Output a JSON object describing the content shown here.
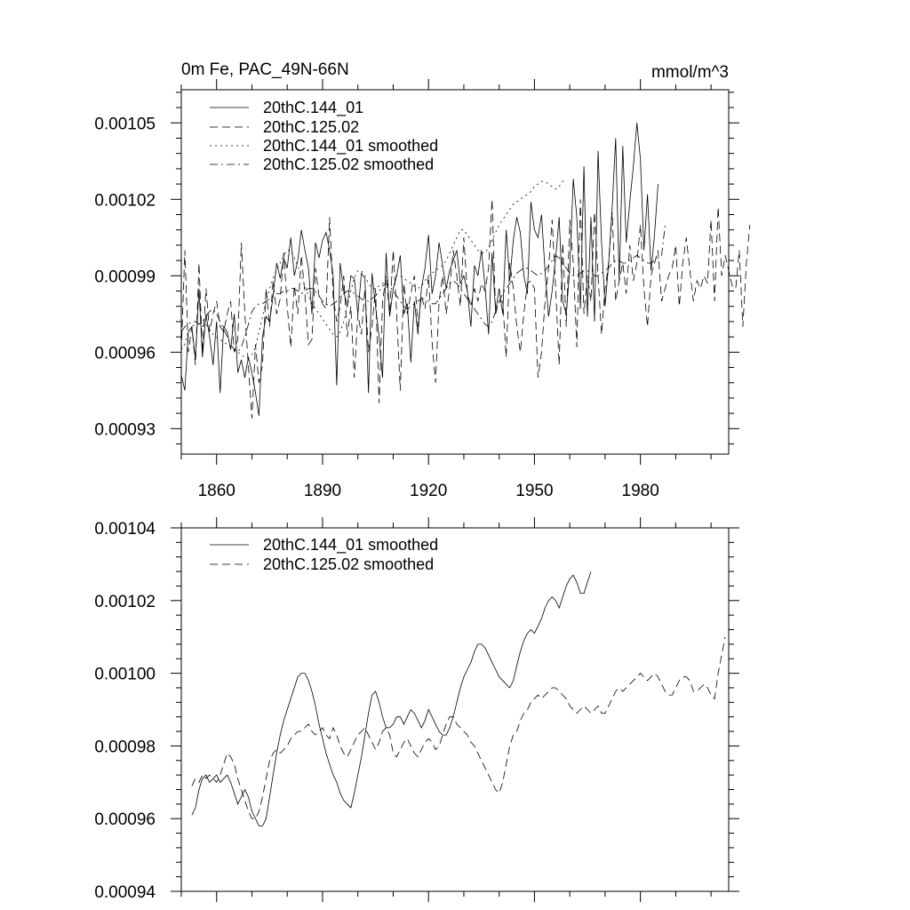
{
  "chart_data": [
    {
      "type": "line",
      "title": "0m Fe, PAC_49N-66N",
      "units_label": "mmol/m^3",
      "xlim": [
        1850,
        2005
      ],
      "ylim": [
        0.00092,
        0.001063
      ],
      "yticks": [
        0.00093,
        0.00096,
        0.00099,
        0.00102,
        0.00105
      ],
      "ytick_labels": [
        "0.00093",
        "0.00096",
        "0.00099",
        "0.00102",
        "0.00105"
      ],
      "xticks": [
        1860,
        1890,
        1920,
        1950,
        1980
      ],
      "xtick_labels": [
        "1860",
        "1890",
        "1920",
        "1950",
        "1980"
      ],
      "legend_position": "top-left",
      "series": [
        {
          "name": "20thC.144_01",
          "style": "solid",
          "x_start": 1850,
          "values": [
            0.000951,
            0.000945,
            0.000968,
            0.00097,
            0.000957,
            0.000985,
            0.000958,
            0.000975,
            0.000966,
            0.000955,
            0.000972,
            0.000944,
            0.00097,
            0.000968,
            0.000961,
            0.000975,
            0.000952,
            0.000957,
            0.00095,
            0.000958,
            0.000952,
            0.000944,
            0.000935,
            0.000966,
            0.000974,
            0.000972,
            0.000982,
            0.000995,
            0.000989,
            0.000997,
            0.000993,
            0.001005,
            0.00099,
            0.000996,
            0.001008,
            0.001,
            0.000993,
            0.000975,
            0.001003,
            0.000997,
            0.001004,
            0.001007,
            0.001,
            0.00099,
            0.000947,
            0.000995,
            0.000984,
            0.000978,
            0.00099,
            0.000989,
            0.000975,
            0.000991,
            0.000989,
            0.000944,
            0.000991,
            0.000978,
            0.000966,
            0.00095,
            0.000999,
            0.000974,
            0.000985,
            0.00099,
            0.000998,
            0.000975,
            0.000979,
            0.000956,
            0.00098,
            0.000967,
            0.000985,
            0.000993,
            0.001006,
            0.000983,
            0.00099,
            0.001003,
            0.000994,
            0.000985,
            0.000992,
            0.000996,
            0.001,
            0.000987,
            0.00099,
            0.000984,
            0.00097,
            0.000994,
            0.00099,
            0.001,
            0.000986,
            0.000967,
            0.000999,
            0.000976,
            0.000985,
            0.000975,
            0.001008,
            0.000988,
            0.001004,
            0.001013,
            0.001007,
            0.00099,
            0.000983,
            0.001019,
            0.001008,
            0.001005,
            0.001014,
            0.000992,
            0.000974,
            0.000984,
            0.000997,
            0.001013,
            0.00098,
            0.000975,
            0.000993,
            0.001028,
            0.001013,
            0.000977,
            0.001033,
            0.000974,
            0.001013,
            0.000972,
            0.001039,
            0.001003,
            0.000978,
            0.000995,
            0.001017,
            0.001044,
            0.000988,
            0.001041,
            0.001003,
            0.001019,
            0.001033,
            0.00105,
            0.001036,
            0.001,
            0.001022,
            0.000992,
            0.001006,
            0.001026
          ]
        },
        {
          "name": "20thC.125.02",
          "style": "dashed",
          "x_start": 1850,
          "values": [
            0.00096,
            0.001,
            0.00096,
            0.00097,
            0.000955,
            0.000995,
            0.00096,
            0.000985,
            0.000968,
            0.000975,
            0.00098,
            0.00097,
            0.000968,
            0.000975,
            0.00098,
            0.00096,
            0.000965,
            0.001003,
            0.000975,
            0.000955,
            0.000934,
            0.000963,
            0.000948,
            0.000955,
            0.000985,
            0.00097,
            0.000988,
            0.000975,
            0.000981,
            0.000999,
            0.000978,
            0.000962,
            0.000986,
            0.000975,
            0.000998,
            0.000983,
            0.000963,
            0.000965,
            0.000993,
            0.000982,
            0.000979,
            0.000977,
            0.001013,
            0.000982,
            0.000972,
            0.000978,
            0.00099,
            0.000966,
            0.000978,
            0.00095,
            0.000975,
            0.000967,
            0.000985,
            0.00096,
            0.00097,
            0.000985,
            0.00094,
            0.00098,
            0.00099,
            0.000975,
            0.001,
            0.000975,
            0.000945,
            0.000987,
            0.000975,
            0.000983,
            0.00099,
            0.00097,
            0.000982,
            0.000977,
            0.00099,
            0.000964,
            0.000948,
            0.00098,
            0.00099,
            0.000975,
            0.000985,
            0.001,
            0.00099,
            0.000978,
            0.001005,
            0.000983,
            0.000978,
            0.000985,
            0.00098,
            0.000987,
            0.000984,
            0.000993,
            0.00102,
            0.000975,
            0.00098,
            0.00098,
            0.000958,
            0.000995,
            0.000985,
            0.00097,
            0.00096,
            0.000975,
            0.000987,
            0.000988,
            0.000985,
            0.00095,
            0.00096,
            0.00098,
            0.000993,
            0.001012,
            0.000985,
            0.000955,
            0.001003,
            0.00097,
            0.001012,
            0.000995,
            0.000962,
            0.00102,
            0.000975,
            0.00099,
            0.00098,
            0.001015,
            0.00099,
            0.000967,
            0.000985,
            0.000995,
            0.001015,
            0.00098,
            0.000988,
            0.000995,
            0.000983,
            0.001002,
            0.000988,
            0.000995,
            0.00101,
            0.000985,
            0.00097,
            0.00099,
            0.000995,
            0.001,
            0.00098,
            0.000985,
            0.00099,
            0.000993,
            0.001002,
            0.000978,
            0.000995,
            0.001005,
            0.000992,
            0.00098,
            0.000988,
            0.000985,
            0.00099,
            0.000987,
            0.001012,
            0.00098,
            0.001017,
            0.00099,
            0.000998,
            0.000992,
            0.000986,
            0.000985,
            0.001,
            0.00097,
            0.000995,
            0.00101
          ]
        },
        {
          "name": "20thC.144_01 smoothed",
          "style": "dotted",
          "x_start": 1850,
          "values": [
            0.000961,
            0.000963,
            0.000968,
            0.00097,
            0.000971,
            0.000971,
            0.00097,
            0.000971,
            0.000969,
            0.000967,
            0.000966,
            0.000965,
            0.000964,
            0.000963,
            0.000962,
            0.000961,
            0.00096,
            0.000959,
            0.000958,
            0.000958,
            0.000959,
            0.000962,
            0.000968,
            0.000974,
            0.00098,
            0.000985,
            0.000989,
            0.000992,
            0.000995,
            0.000998,
            0.001,
            0.001,
            0.000997,
            0.000994,
            0.00099,
            0.000986,
            0.000982,
            0.000979,
            0.000977,
            0.000975,
            0.000973,
            0.000971,
            0.000969,
            0.000967,
            0.000966,
            0.000968,
            0.000972,
            0.000978,
            0.000984,
            0.000989,
            0.000992,
            0.000992,
            0.00099,
            0.000987,
            0.000985,
            0.000985,
            0.000986,
            0.000987,
            0.000988,
            0.000989,
            0.00099,
            0.00099,
            0.00099,
            0.000989,
            0.000988,
            0.000987,
            0.000986,
            0.000985,
            0.000986,
            0.000988,
            0.00099,
            0.000991,
            0.000992,
            0.000993,
            0.000994,
            0.000996,
            0.000999,
            0.001002,
            0.001005,
            0.001008,
            0.001008,
            0.001006,
            0.001004,
            0.001002,
            0.001,
            0.000999,
            0.000999,
            0.001001,
            0.001004,
            0.001007,
            0.00101,
            0.001012,
            0.001014,
            0.001016,
            0.001018,
            0.001019,
            0.00102,
            0.001021,
            0.001022,
            0.001023,
            0.001025,
            0.001026,
            0.001027,
            0.001027,
            0.001026,
            0.001025,
            0.001024,
            0.001025,
            0.001027,
            0.001028
          ]
        },
        {
          "name": "20thC.125.02 smoothed",
          "style": "dashdot",
          "x_start": 1850,
          "values": [
            0.000968,
            0.00097,
            0.000971,
            0.000972,
            0.000972,
            0.000971,
            0.000972,
            0.000974,
            0.000976,
            0.000977,
            0.000975,
            0.000972,
            0.000969,
            0.000966,
            0.000963,
            0.000961,
            0.00096,
            0.000962,
            0.000966,
            0.000971,
            0.000976,
            0.000978,
            0.000979,
            0.000979,
            0.00098,
            0.000981,
            0.000982,
            0.000983,
            0.000983,
            0.000984,
            0.000984,
            0.000985,
            0.000985,
            0.000984,
            0.000983,
            0.000984,
            0.000985,
            0.000985,
            0.000984,
            0.000982,
            0.00098,
            0.000979,
            0.000978,
            0.000979,
            0.00098,
            0.000982,
            0.000983,
            0.000984,
            0.000984,
            0.000983,
            0.000982,
            0.000981,
            0.00098,
            0.00098,
            0.000981,
            0.000982,
            0.000984,
            0.000986,
            0.000987,
            0.000986,
            0.000984,
            0.000982,
            0.00098,
            0.000978,
            0.000977,
            0.000978,
            0.000979,
            0.00098,
            0.000981,
            0.000981,
            0.00098,
            0.000979,
            0.000979,
            0.000981,
            0.000983,
            0.000985,
            0.000987,
            0.000988,
            0.000987,
            0.000985,
            0.000983,
            0.000981,
            0.000979,
            0.000977,
            0.000975,
            0.000973,
            0.000971,
            0.00097,
            0.000972,
            0.000976,
            0.00098,
            0.000983,
            0.000985,
            0.000987,
            0.000989,
            0.000991,
            0.000992,
            0.000993,
            0.000993,
            0.000992,
            0.000991,
            0.00099,
            0.000991,
            0.000992,
            0.000994,
            0.000996,
            0.000998,
            0.000997,
            0.000995,
            0.000993,
            0.000991,
            0.00099,
            0.00099,
            0.000991,
            0.000992,
            0.000992,
            0.000991,
            0.00099,
            0.00099,
            0.000991,
            0.000992,
            0.000993,
            0.000995,
            0.000996,
            0.000996,
            0.000995,
            0.000995,
            0.000996,
            0.000997,
            0.000998,
            0.000997,
            0.000996,
            0.000995,
            0.000995,
            0.000996,
            0.000997,
            0.000998,
            0.00101
          ]
        }
      ]
    },
    {
      "type": "line",
      "xlim": [
        1850,
        2005
      ],
      "ylim": [
        0.00094,
        0.00104
      ],
      "yticks": [
        0.00094,
        0.00096,
        0.00098,
        0.001,
        0.00102,
        0.00104
      ],
      "ytick_labels": [
        "0.00094",
        "0.00096",
        "0.00098",
        "0.00100",
        "0.00102",
        "0.00104"
      ],
      "xticks": [
        1860,
        1890,
        1920,
        1950,
        1980
      ],
      "legend_position": "top-left",
      "series": [
        {
          "name": "20thC.144_01 smoothed",
          "style": "solid",
          "x_start": 1853,
          "values": [
            0.000961,
            0.000963,
            0.000968,
            0.000971,
            0.000972,
            0.00097,
            0.000971,
            0.000972,
            0.00097,
            0.000971,
            0.000972,
            0.00097,
            0.000967,
            0.000964,
            0.000966,
            0.000968,
            0.000966,
            0.000962,
            0.00096,
            0.000958,
            0.000958,
            0.00096,
            0.000966,
            0.000972,
            0.000978,
            0.000983,
            0.000987,
            0.00099,
            0.000993,
            0.000996,
            0.000999,
            0.001,
            0.001,
            0.000998,
            0.000995,
            0.000991,
            0.000986,
            0.000982,
            0.000978,
            0.000975,
            0.000972,
            0.00097,
            0.000967,
            0.000965,
            0.000964,
            0.000963,
            0.000967,
            0.000972,
            0.000977,
            0.000983,
            0.000989,
            0.000994,
            0.000995,
            0.000992,
            0.000988,
            0.000985,
            0.000985,
            0.000986,
            0.000988,
            0.000988,
            0.000986,
            0.000988,
            0.00099,
            0.000989,
            0.000987,
            0.000985,
            0.000987,
            0.00099,
            0.000988,
            0.000986,
            0.000984,
            0.000983,
            0.000983,
            0.000985,
            0.000988,
            0.000992,
            0.000996,
            0.000999,
            0.001001,
            0.001003,
            0.001006,
            0.001008,
            0.001008,
            0.001007,
            0.001005,
            0.001003,
            0.001001,
            0.000999,
            0.000998,
            0.000997,
            0.000996,
            0.000998,
            0.001002,
            0.001006,
            0.001009,
            0.001011,
            0.001012,
            0.001011,
            0.001013,
            0.001015,
            0.001018,
            0.00102,
            0.001021,
            0.00102,
            0.001018,
            0.001021,
            0.001024,
            0.001026,
            0.001027,
            0.001025,
            0.001022,
            0.001022,
            0.001025,
            0.001028
          ]
        },
        {
          "name": "20thC.125.02 smoothed",
          "style": "dashed",
          "x_start": 1853,
          "values": [
            0.000969,
            0.000971,
            0.00097,
            0.000972,
            0.000971,
            0.000972,
            0.000971,
            0.00097,
            0.000972,
            0.000975,
            0.000978,
            0.000977,
            0.000975,
            0.000971,
            0.000968,
            0.000965,
            0.000962,
            0.00096,
            0.00096,
            0.000962,
            0.000966,
            0.000971,
            0.000976,
            0.000978,
            0.000979,
            0.000978,
            0.000979,
            0.00098,
            0.000982,
            0.000983,
            0.000984,
            0.000984,
            0.000985,
            0.000986,
            0.000984,
            0.000983,
            0.000984,
            0.000985,
            0.000983,
            0.000982,
            0.000985,
            0.000983,
            0.00098,
            0.000978,
            0.000977,
            0.000979,
            0.000981,
            0.000983,
            0.000984,
            0.000985,
            0.000983,
            0.000981,
            0.000979,
            0.000981,
            0.000984,
            0.000985,
            0.000983,
            0.000978,
            0.000977,
            0.000979,
            0.000981,
            0.000982,
            0.00098,
            0.000978,
            0.000977,
            0.000979,
            0.000981,
            0.000982,
            0.000981,
            0.000979,
            0.00098,
            0.000983,
            0.000986,
            0.000988,
            0.000988,
            0.000986,
            0.000985,
            0.000984,
            0.000983,
            0.000981,
            0.00098,
            0.000978,
            0.000976,
            0.000974,
            0.000972,
            0.00097,
            0.000968,
            0.000967,
            0.00097,
            0.000975,
            0.00098,
            0.000983,
            0.000984,
            0.000987,
            0.000989,
            0.00099,
            0.000992,
            0.000993,
            0.000994,
            0.000993,
            0.000994,
            0.000995,
            0.000996,
            0.000996,
            0.000995,
            0.000994,
            0.000993,
            0.000991,
            0.00099,
            0.000989,
            0.00099,
            0.000991,
            0.00099,
            0.000989,
            0.00099,
            0.000991,
            0.000989,
            0.000989,
            0.000991,
            0.000993,
            0.000995,
            0.000996,
            0.000995,
            0.000996,
            0.000997,
            0.000998,
            0.000999,
            0.001,
            0.000999,
            0.000998,
            0.000999,
            0.001,
            0.000999,
            0.000997,
            0.000995,
            0.000994,
            0.000994,
            0.000996,
            0.000998,
            0.000999,
            0.000999,
            0.000998,
            0.000995,
            0.000995,
            0.000996,
            0.000997,
            0.000996,
            0.000994,
            0.000993,
            0.001,
            0.001005,
            0.00101
          ]
        }
      ]
    }
  ]
}
